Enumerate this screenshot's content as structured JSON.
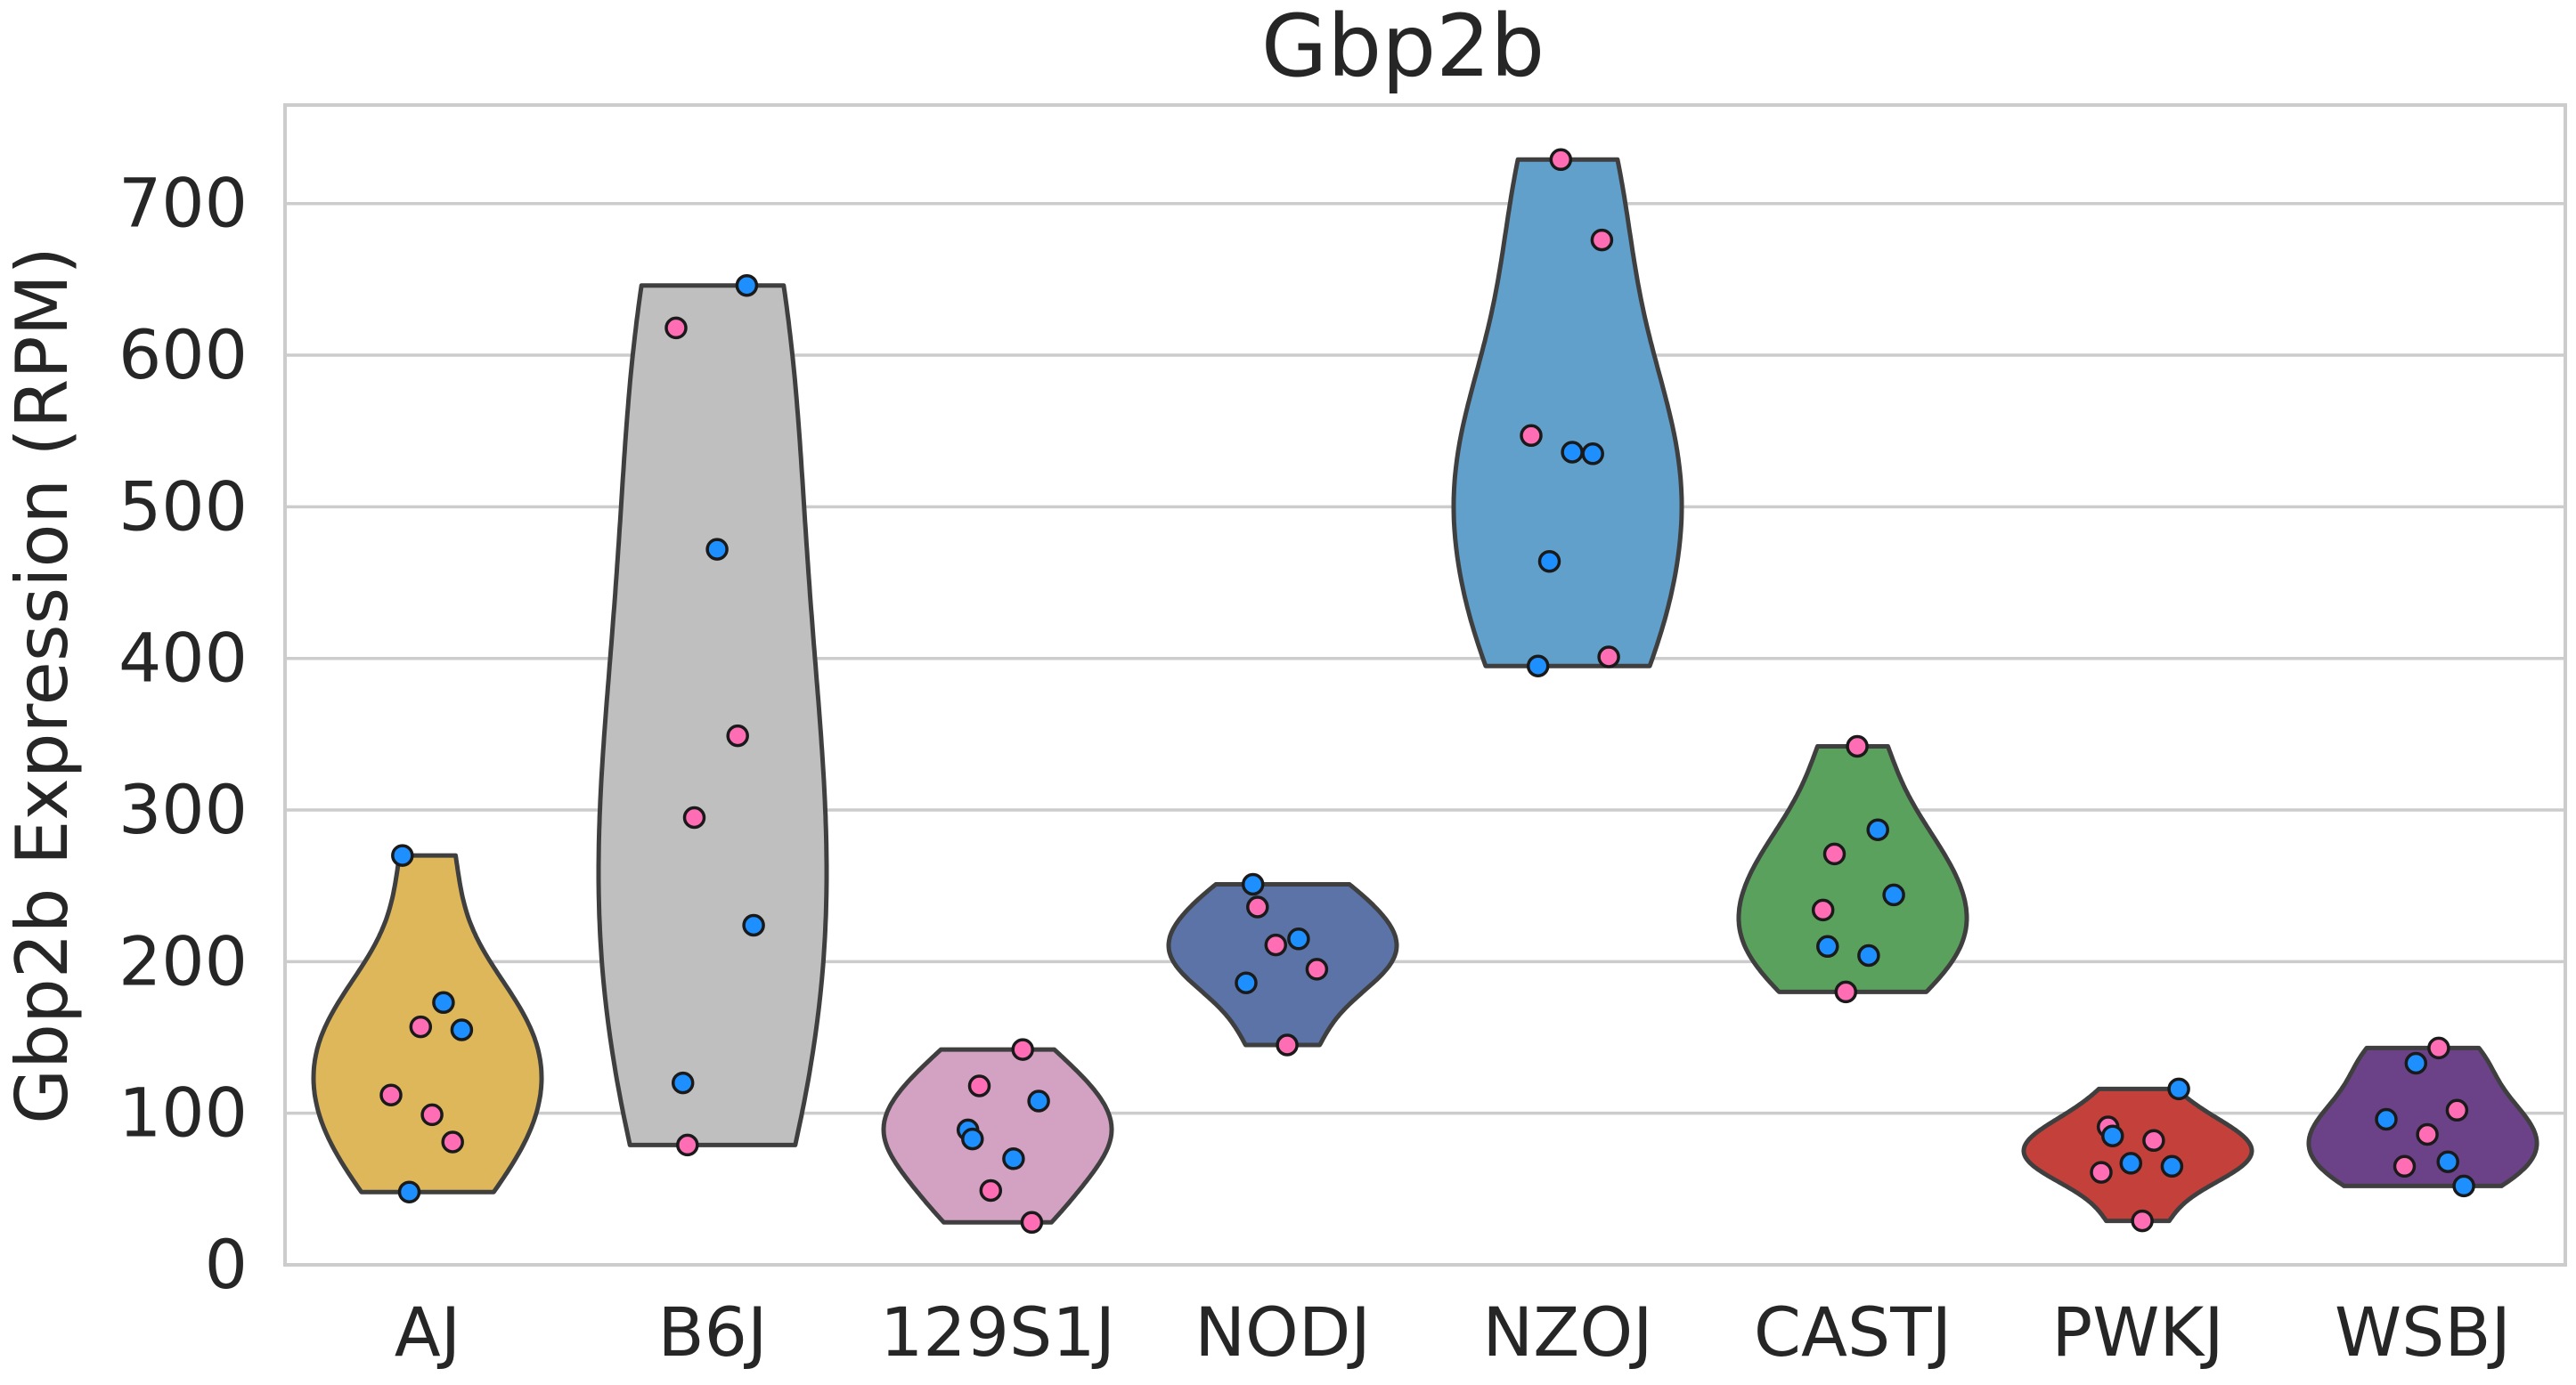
{
  "chart_data": {
    "type": "violin",
    "title": "Gbp2b",
    "xlabel": "",
    "ylabel": "Gbp2b Expression (RPM)",
    "ylim": [
      0,
      765
    ],
    "yticks": [
      0,
      100,
      200,
      300,
      400,
      500,
      600,
      700
    ],
    "grid": true,
    "categories": [
      "AJ",
      "B6J",
      "129S1J",
      "NODJ",
      "NZOJ",
      "CASTJ",
      "PWKJ",
      "WSBJ"
    ],
    "violin_colors": [
      "#ddb75a",
      "#bfbfbf",
      "#d3a2c2",
      "#5b73a6",
      "#62a0cc",
      "#5ba15e",
      "#c4403a",
      "#6b4288"
    ],
    "point_colors": {
      "blue": "#1e8fff",
      "pink": "#ff6eb4"
    },
    "points": [
      [
        {
          "v": 270,
          "c": "blue"
        },
        {
          "v": 173,
          "c": "blue"
        },
        {
          "v": 157,
          "c": "pink"
        },
        {
          "v": 155,
          "c": "blue"
        },
        {
          "v": 112,
          "c": "pink"
        },
        {
          "v": 99,
          "c": "pink"
        },
        {
          "v": 81,
          "c": "pink"
        },
        {
          "v": 48,
          "c": "blue"
        }
      ],
      [
        {
          "v": 646,
          "c": "blue"
        },
        {
          "v": 618,
          "c": "pink"
        },
        {
          "v": 472,
          "c": "blue"
        },
        {
          "v": 349,
          "c": "pink"
        },
        {
          "v": 295,
          "c": "pink"
        },
        {
          "v": 224,
          "c": "blue"
        },
        {
          "v": 120,
          "c": "blue"
        },
        {
          "v": 79,
          "c": "pink"
        }
      ],
      [
        {
          "v": 142,
          "c": "pink"
        },
        {
          "v": 118,
          "c": "pink"
        },
        {
          "v": 108,
          "c": "blue"
        },
        {
          "v": 89,
          "c": "blue"
        },
        {
          "v": 83,
          "c": "blue"
        },
        {
          "v": 70,
          "c": "blue"
        },
        {
          "v": 49,
          "c": "pink"
        },
        {
          "v": 28,
          "c": "pink"
        }
      ],
      [
        {
          "v": 251,
          "c": "blue"
        },
        {
          "v": 236,
          "c": "pink"
        },
        {
          "v": 215,
          "c": "blue"
        },
        {
          "v": 211,
          "c": "pink"
        },
        {
          "v": 195,
          "c": "pink"
        },
        {
          "v": 186,
          "c": "blue"
        },
        {
          "v": 145,
          "c": "pink"
        }
      ],
      [
        {
          "v": 729,
          "c": "pink"
        },
        {
          "v": 676,
          "c": "pink"
        },
        {
          "v": 547,
          "c": "pink"
        },
        {
          "v": 536,
          "c": "blue"
        },
        {
          "v": 535,
          "c": "blue"
        },
        {
          "v": 464,
          "c": "blue"
        },
        {
          "v": 401,
          "c": "pink"
        },
        {
          "v": 395,
          "c": "blue"
        }
      ],
      [
        {
          "v": 342,
          "c": "pink"
        },
        {
          "v": 287,
          "c": "blue"
        },
        {
          "v": 271,
          "c": "pink"
        },
        {
          "v": 244,
          "c": "blue"
        },
        {
          "v": 234,
          "c": "pink"
        },
        {
          "v": 210,
          "c": "blue"
        },
        {
          "v": 204,
          "c": "blue"
        },
        {
          "v": 180,
          "c": "pink"
        }
      ],
      [
        {
          "v": 116,
          "c": "blue"
        },
        {
          "v": 91,
          "c": "pink"
        },
        {
          "v": 85,
          "c": "blue"
        },
        {
          "v": 82,
          "c": "pink"
        },
        {
          "v": 67,
          "c": "blue"
        },
        {
          "v": 65,
          "c": "blue"
        },
        {
          "v": 61,
          "c": "pink"
        },
        {
          "v": 29,
          "c": "pink"
        }
      ],
      [
        {
          "v": 143,
          "c": "pink"
        },
        {
          "v": 133,
          "c": "blue"
        },
        {
          "v": 102,
          "c": "pink"
        },
        {
          "v": 96,
          "c": "blue"
        },
        {
          "v": 86,
          "c": "pink"
        },
        {
          "v": 68,
          "c": "blue"
        },
        {
          "v": 65,
          "c": "pink"
        },
        {
          "v": 52,
          "c": "blue"
        }
      ]
    ]
  }
}
